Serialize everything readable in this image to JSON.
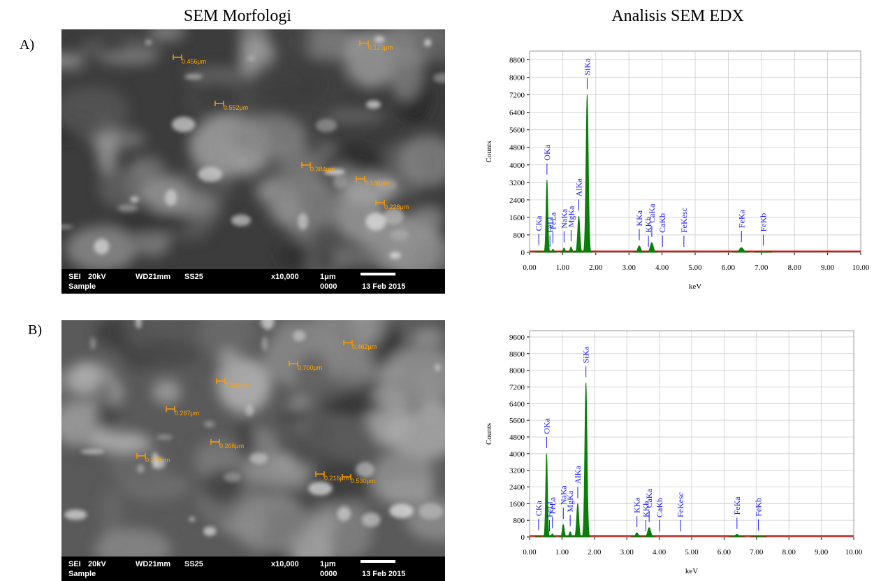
{
  "headings": {
    "left": "SEM Morfologi",
    "right": "Analisis SEM EDX"
  },
  "sem_images": [
    {
      "label": "A)",
      "measurements": [
        "0.456μm",
        "0.123μm",
        "0.552μm",
        "0.384μm",
        "0.180μm",
        "0.228μm"
      ],
      "info_bar": {
        "mode": "SEI",
        "voltage": "20kV",
        "wd": "WD21mm",
        "ss": "SS25",
        "magnification": "x10,000",
        "scale": "1μm",
        "sample": "Sample",
        "number": "0000",
        "date": "13 Feb 2015"
      }
    },
    {
      "label": "B)",
      "measurements": [
        "0.462μm",
        "0.700μm",
        "0.428μm",
        "0.267μm",
        "0.266μm",
        "0.279μm",
        "0.216μm",
        "0.530μm"
      ],
      "info_bar": {
        "mode": "SEI",
        "voltage": "20kV",
        "wd": "WD21mm",
        "ss": "SS25",
        "magnification": "x10,000",
        "scale": "1μm",
        "sample": "Sample",
        "number": "0000",
        "date": "13 Feb 2015"
      }
    }
  ],
  "chart_data": [
    {
      "type": "spectrum",
      "x_label": "keV",
      "y_label": "Counts",
      "color": "#0a7d0a",
      "background_color": "#e00000",
      "line_color": "#1a1aff",
      "grid": true,
      "x": [
        0.277,
        0.525,
        0.705,
        1.041,
        1.253,
        1.486,
        1.739,
        3.312,
        3.69,
        6.398,
        7.057
      ],
      "values": [
        80,
        3300,
        150,
        200,
        250,
        1650,
        7200,
        300,
        450,
        220,
        50
      ],
      "lines": [
        {
          "label": "CKa",
          "x": 0.277
        },
        {
          "label": "OKa",
          "x": 0.525
        },
        {
          "label": "FeLl",
          "x": 0.615
        },
        {
          "label": "FeLa",
          "x": 0.705
        },
        {
          "label": "NaKa",
          "x": 1.041
        },
        {
          "label": "MgKa",
          "x": 1.253
        },
        {
          "label": "AlKa",
          "x": 1.486
        },
        {
          "label": "SiKa",
          "x": 1.739
        },
        {
          "label": "KKa",
          "x": 3.312
        },
        {
          "label": "KKb",
          "x": 3.589
        },
        {
          "label": "CaKa",
          "x": 3.69
        },
        {
          "label": "CaKb",
          "x": 4.012
        },
        {
          "label": "FeKesc",
          "x": 4.66
        },
        {
          "label": "FeKa",
          "x": 6.398
        },
        {
          "label": "FeKb",
          "x": 7.057
        }
      ],
      "xlim": [
        0,
        10
      ],
      "xticks": [
        {
          "value": 0,
          "label": "0.00"
        },
        {
          "value": 1,
          "label": "1.00"
        },
        {
          "value": 2,
          "label": "2.00"
        },
        {
          "value": 3,
          "label": "3.00"
        },
        {
          "value": 4,
          "label": "4.00"
        },
        {
          "value": 5,
          "label": "5.00"
        },
        {
          "value": 6,
          "label": "6.00"
        },
        {
          "value": 7,
          "label": "7.00"
        },
        {
          "value": 8,
          "label": "8.00"
        },
        {
          "value": 9,
          "label": "9.00"
        },
        {
          "value": 10,
          "label": "10.00"
        }
      ],
      "ylim": [
        0,
        9200
      ],
      "yticks": [
        0,
        800,
        1600,
        2400,
        3200,
        4000,
        4800,
        5600,
        6400,
        7200,
        8000,
        8800
      ]
    },
    {
      "type": "spectrum",
      "x_label": "keV",
      "y_label": "Counts",
      "color": "#0a7d0a",
      "background_color": "#e00000",
      "line_color": "#1a1aff",
      "grid": true,
      "x": [
        0.277,
        0.525,
        0.705,
        1.041,
        1.253,
        1.486,
        1.739,
        3.312,
        3.69,
        6.398,
        7.057
      ],
      "values": [
        60,
        4000,
        150,
        600,
        250,
        1600,
        7400,
        200,
        450,
        120,
        40
      ],
      "lines": [
        {
          "label": "CKa",
          "x": 0.277
        },
        {
          "label": "OKa",
          "x": 0.525
        },
        {
          "label": "FeLl",
          "x": 0.615
        },
        {
          "label": "FeLa",
          "x": 0.705
        },
        {
          "label": "NaKa",
          "x": 1.041
        },
        {
          "label": "MgKa",
          "x": 1.253
        },
        {
          "label": "AlKa",
          "x": 1.486
        },
        {
          "label": "SiKa",
          "x": 1.739
        },
        {
          "label": "KKa",
          "x": 3.312
        },
        {
          "label": "KKb",
          "x": 3.589
        },
        {
          "label": "CaKa",
          "x": 3.69
        },
        {
          "label": "CaKb",
          "x": 4.012
        },
        {
          "label": "FeKesc",
          "x": 4.66
        },
        {
          "label": "FeKa",
          "x": 6.398
        },
        {
          "label": "FeKb",
          "x": 7.057
        }
      ],
      "xlim": [
        0,
        10
      ],
      "xticks": [
        {
          "value": 0,
          "label": "0.00"
        },
        {
          "value": 1,
          "label": "1.00"
        },
        {
          "value": 2,
          "label": "2.00"
        },
        {
          "value": 3,
          "label": "3.00"
        },
        {
          "value": 4,
          "label": "4.00"
        },
        {
          "value": 5,
          "label": "5.00"
        },
        {
          "value": 6,
          "label": "6.00"
        },
        {
          "value": 7,
          "label": "7.00"
        },
        {
          "value": 8,
          "label": "8.00"
        },
        {
          "value": 9,
          "label": "9.00"
        },
        {
          "value": 10,
          "label": "10.00"
        }
      ],
      "ylim": [
        0,
        9900
      ],
      "yticks": [
        0,
        800,
        1600,
        2400,
        3200,
        4000,
        4800,
        5600,
        6400,
        7200,
        8000,
        8800,
        9600
      ]
    }
  ]
}
